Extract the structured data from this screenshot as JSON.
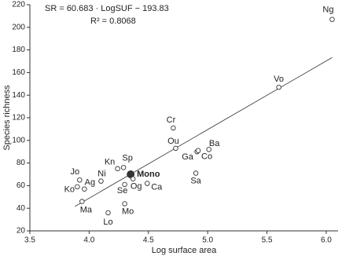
{
  "chart_data": {
    "type": "scatter",
    "annotations": [
      "SR = 60.683 · LogSUF − 193.83",
      "R² = 0.8068"
    ],
    "xlabel": "Log surface area",
    "ylabel": "Species richness",
    "xlim": [
      3.5,
      6.1
    ],
    "ylim": [
      20,
      220
    ],
    "xticks": [
      3.5,
      {
        "value": 4,
        "label": "4.0"
      },
      4.5,
      {
        "value": 5,
        "label": "5.0"
      },
      5.5,
      {
        "value": 6,
        "label": "6.0"
      }
    ],
    "yticks": [
      20,
      40,
      60,
      80,
      100,
      120,
      140,
      160,
      180,
      200,
      220
    ],
    "points": {
      "labels": [
        "Ng",
        "Vo",
        "Cr",
        "Ou",
        "Ba",
        "Ga",
        "Co",
        "Sa",
        "Kn",
        "Sp",
        "Mono",
        "Ni",
        "Jo",
        "Ag",
        "Ko",
        "Se",
        "Og",
        "Ca",
        "Ma",
        "Lo",
        "Mo"
      ],
      "x": [
        6.05,
        5.6,
        4.71,
        4.73,
        5.01,
        4.91,
        4.92,
        4.9,
        4.24,
        4.29,
        4.35,
        4.1,
        3.92,
        3.96,
        3.9,
        4.3,
        4.37,
        4.49,
        3.94,
        4.16,
        4.3
      ],
      "y": [
        207,
        147,
        111,
        93,
        92,
        90,
        91,
        71,
        75,
        76,
        70,
        64,
        65,
        57,
        59,
        61,
        66,
        62,
        46,
        36,
        44
      ],
      "filled": [
        false,
        false,
        false,
        false,
        false,
        false,
        false,
        false,
        false,
        false,
        true,
        false,
        false,
        false,
        false,
        false,
        false,
        false,
        false,
        false,
        false
      ]
    },
    "fit_line": {
      "x": [
        3.88,
        6.05
      ],
      "y": [
        41.6,
        173.3
      ]
    },
    "color": "#333333"
  }
}
